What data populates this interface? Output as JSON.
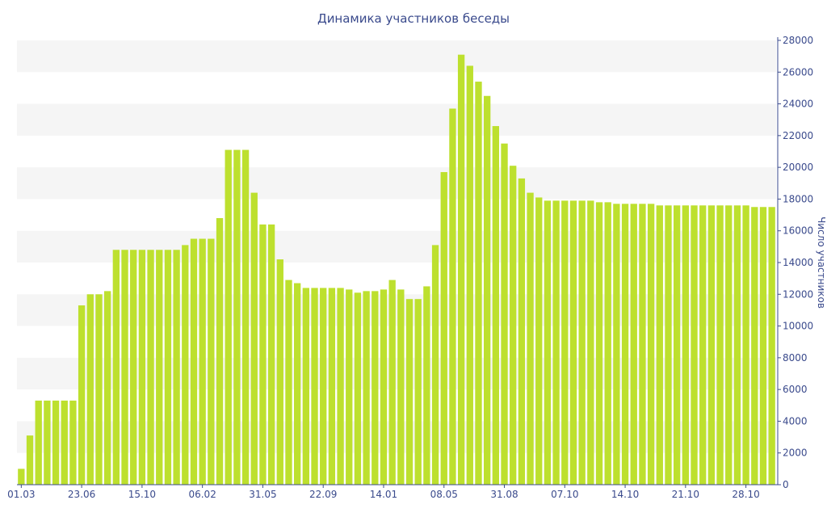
{
  "chart_data": {
    "type": "bar",
    "title": "Динамика участников беседы",
    "xlabel": "",
    "ylabel": "Число участников",
    "ylim": [
      0,
      28000
    ],
    "y_ticks": [
      0,
      2000,
      4000,
      6000,
      8000,
      10000,
      12000,
      14000,
      16000,
      18000,
      20000,
      22000,
      24000,
      26000,
      28000
    ],
    "y_axis_side": "right",
    "grid": "alternating horizontal bands",
    "legend": "none",
    "bar_color": "#bde02e",
    "x_tick_labels": [
      {
        "label": "01.03",
        "index": 0
      },
      {
        "label": "23.06",
        "index": 7
      },
      {
        "label": "15.10",
        "index": 14
      },
      {
        "label": "06.02",
        "index": 21
      },
      {
        "label": "31.05",
        "index": 28
      },
      {
        "label": "22.09",
        "index": 35
      },
      {
        "label": "14.01",
        "index": 42
      },
      {
        "label": "08.05",
        "index": 49
      },
      {
        "label": "31.08",
        "index": 56
      },
      {
        "label": "07.10",
        "index": 63
      },
      {
        "label": "14.10",
        "index": 70
      },
      {
        "label": "21.10",
        "index": 77
      },
      {
        "label": "28.10",
        "index": 84
      }
    ],
    "values": [
      1000,
      3100,
      5300,
      5300,
      5300,
      5300,
      5300,
      11300,
      12000,
      12000,
      12200,
      14800,
      14800,
      14800,
      14800,
      14800,
      14800,
      14800,
      14800,
      15100,
      15500,
      15500,
      15500,
      16800,
      21100,
      21100,
      21100,
      18400,
      16400,
      16400,
      14200,
      12900,
      12700,
      12400,
      12400,
      12400,
      12400,
      12400,
      12300,
      12100,
      12200,
      12200,
      12300,
      12900,
      12300,
      11700,
      11700,
      12500,
      15100,
      19700,
      23700,
      27100,
      26400,
      25400,
      24500,
      22600,
      21500,
      20100,
      19300,
      18400,
      18100,
      17900,
      17900,
      17900,
      17900,
      17900,
      17900,
      17800,
      17800,
      17700,
      17700,
      17700,
      17700,
      17700,
      17600,
      17600,
      17600,
      17600,
      17600,
      17600,
      17600,
      17600,
      17600,
      17600,
      17600,
      17500,
      17500,
      17500
    ]
  }
}
